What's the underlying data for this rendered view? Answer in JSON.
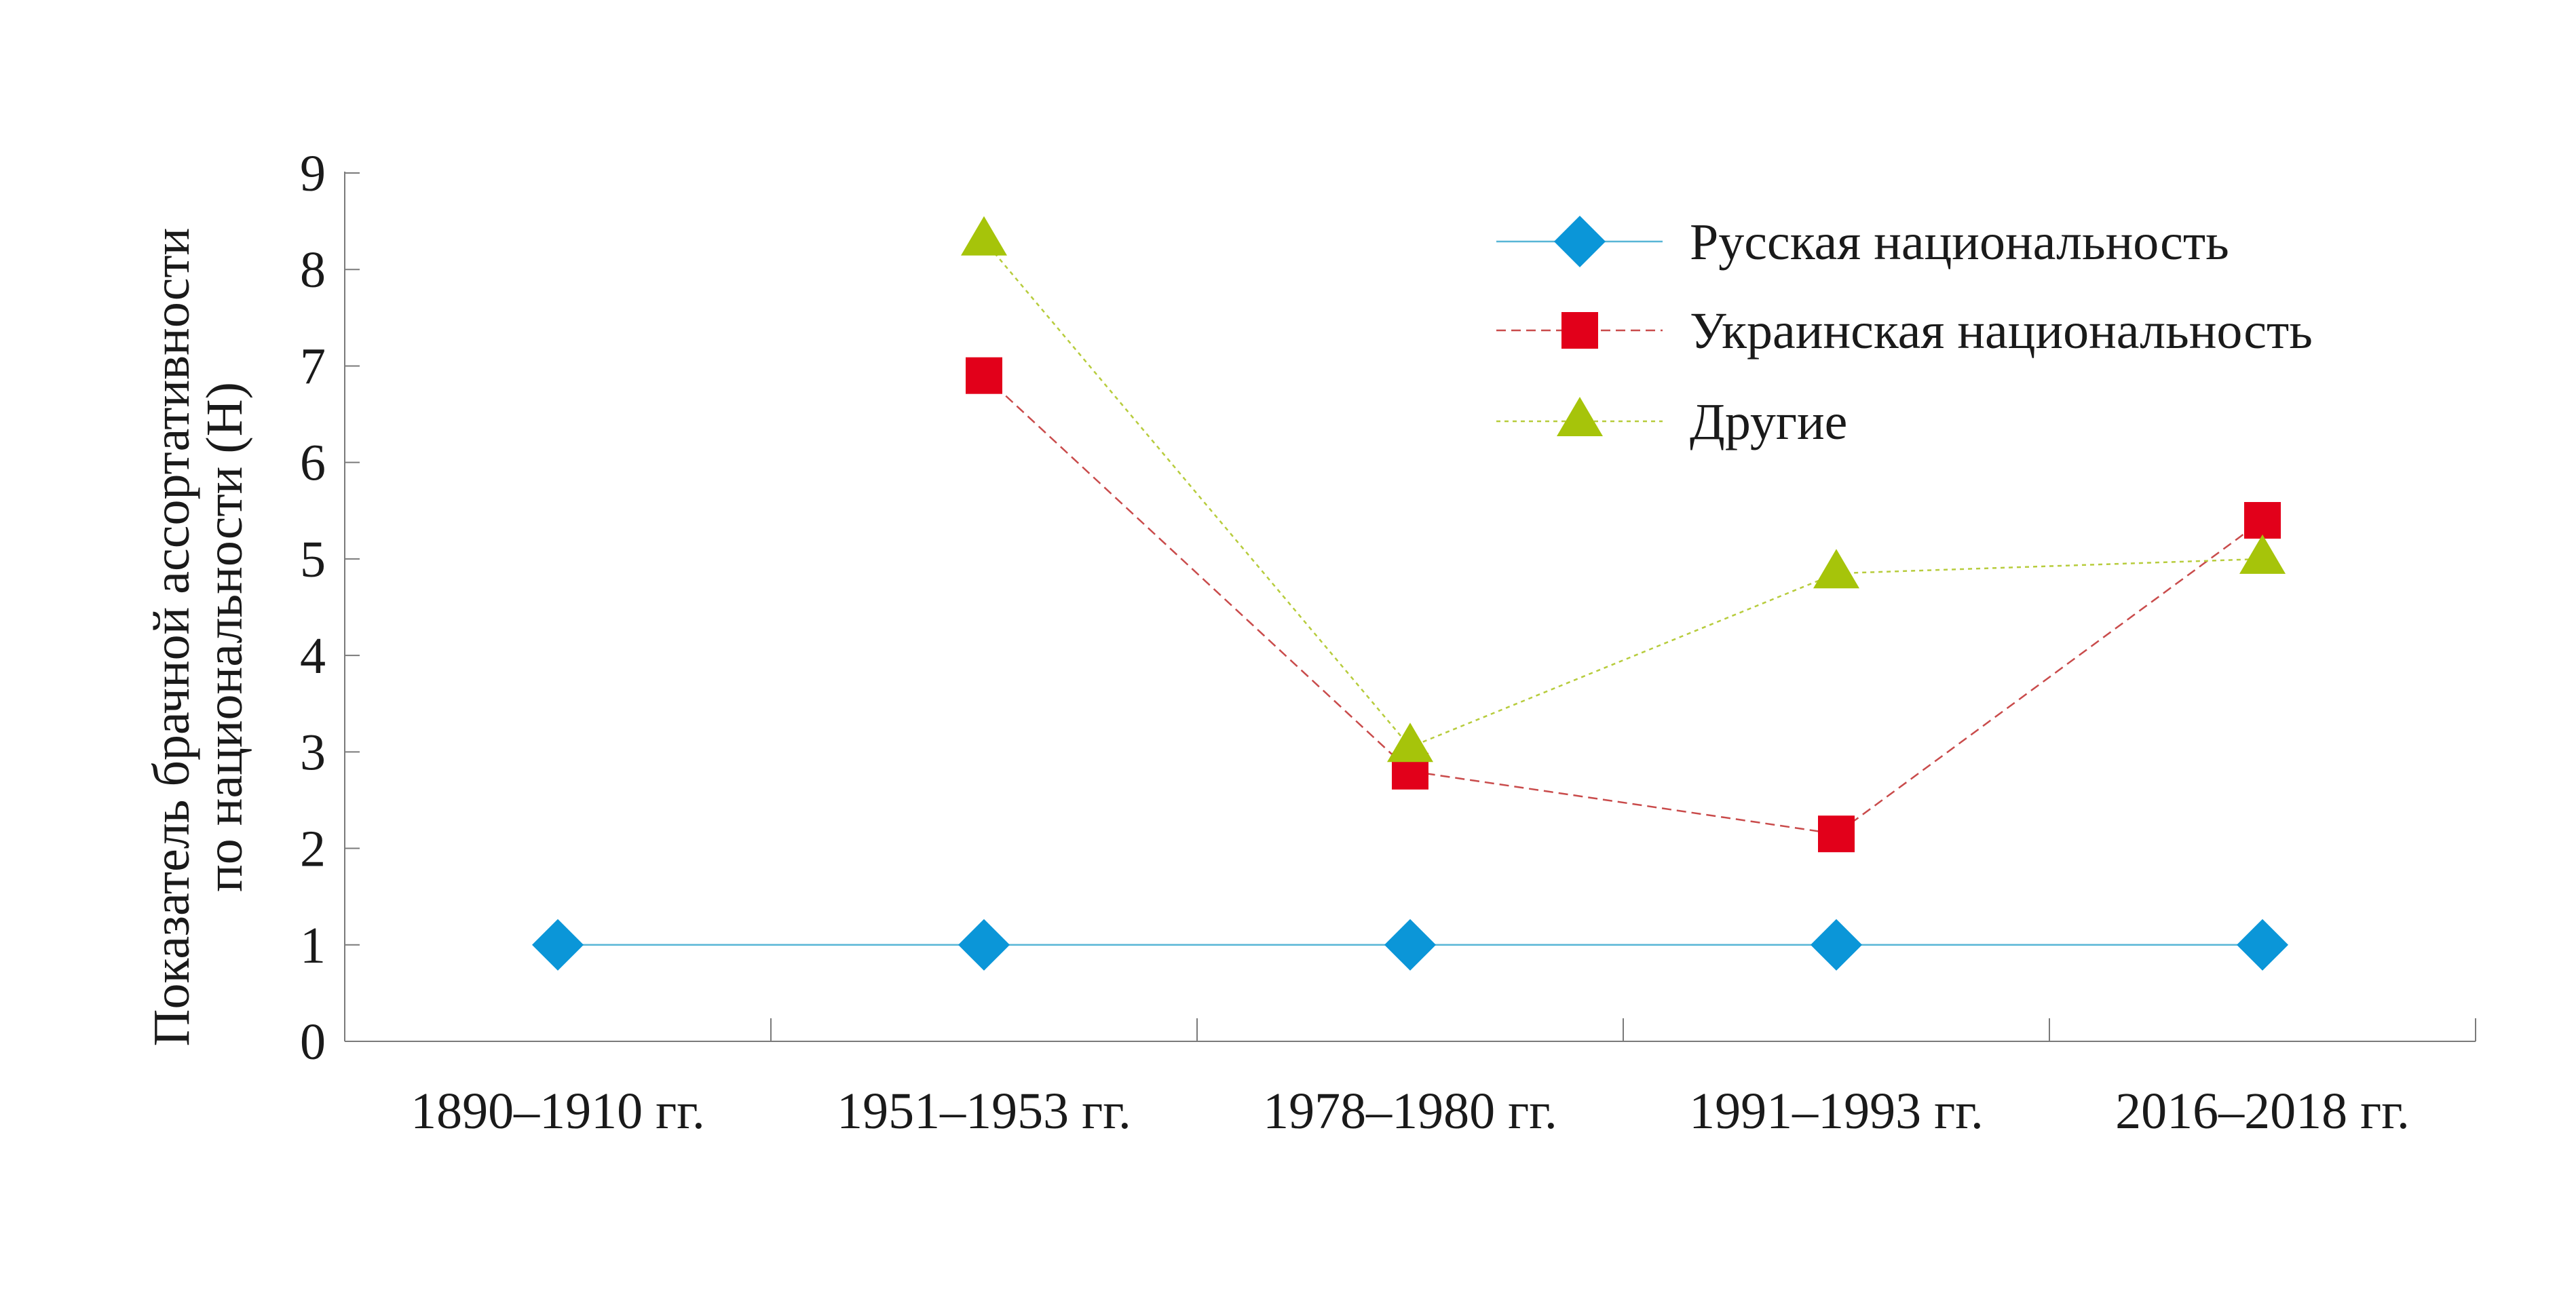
{
  "chart_data": {
    "type": "line",
    "title": "",
    "xlabel": "",
    "ylabel_lines": [
      "Показатель брачной ассортативности",
      "по национальности (H)"
    ],
    "ylim": [
      0,
      9
    ],
    "yticks": [
      "0",
      "1",
      "2",
      "3",
      "4",
      "5",
      "6",
      "7",
      "8",
      "9"
    ],
    "categories": [
      "1890–1910 гг.",
      "1951–1953 гг.",
      "1978–1980 гг.",
      "1991–1993 гг.",
      "2016–2018 гг."
    ],
    "grid": false,
    "legend_position": "top-right",
    "series": [
      {
        "name": "Русская национальность",
        "marker": "diamond",
        "line_style": "solid",
        "color": "#0b96d8",
        "line_color": "#58b6d6",
        "values": [
          1.0,
          1.0,
          1.0,
          1.0,
          1.0
        ]
      },
      {
        "name": "Украинская национальность",
        "marker": "square",
        "line_style": "dashed",
        "color": "#e2001a",
        "line_color": "#c94b4b",
        "values": [
          null,
          6.9,
          2.8,
          2.15,
          5.4
        ]
      },
      {
        "name": "Другие",
        "marker": "triangle",
        "line_style": "dotted",
        "color": "#a6c40a",
        "line_color": "#b7cc3c",
        "values": [
          null,
          8.3,
          3.05,
          4.85,
          5.0
        ]
      }
    ]
  }
}
